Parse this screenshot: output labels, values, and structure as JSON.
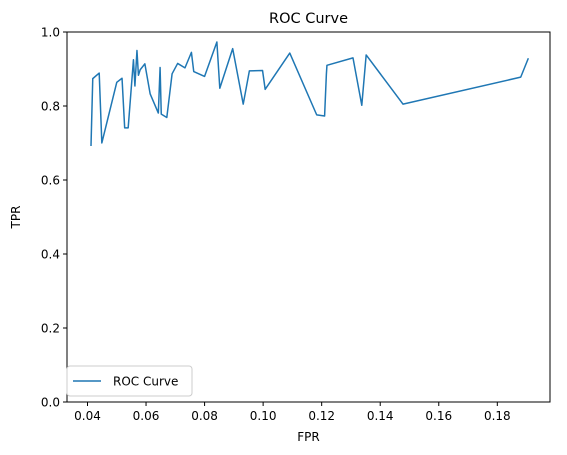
{
  "chart_data": {
    "type": "line",
    "title": "ROC Curve",
    "xlabel": "FPR",
    "ylabel": "TPR",
    "xlim": [
      0.033,
      0.198
    ],
    "ylim": [
      0.0,
      1.0
    ],
    "xticks": [
      "0.04",
      "0.06",
      "0.08",
      "0.10",
      "0.12",
      "0.14",
      "0.16",
      "0.18"
    ],
    "yticks": [
      "0.0",
      "0.2",
      "0.4",
      "0.6",
      "0.8",
      "1.0"
    ],
    "grid": false,
    "legend_position": "lower-left",
    "series": [
      {
        "name": "ROC Curve",
        "color": "#1f77b4",
        "x": [
          0.0412,
          0.0418,
          0.044,
          0.0449,
          0.05,
          0.0518,
          0.0527,
          0.0539,
          0.0557,
          0.0562,
          0.0569,
          0.0574,
          0.058,
          0.0596,
          0.0614,
          0.0642,
          0.0648,
          0.0652,
          0.0671,
          0.0689,
          0.0708,
          0.0733,
          0.0755,
          0.0763,
          0.08,
          0.0842,
          0.0852,
          0.0896,
          0.0932,
          0.0953,
          0.0998,
          0.1007,
          0.1091,
          0.1183,
          0.121,
          0.1216,
          0.1218,
          0.1307,
          0.1337,
          0.1352,
          0.1478,
          0.188,
          0.1906
        ],
        "y": [
          0.692,
          0.874,
          0.889,
          0.7,
          0.864,
          0.875,
          0.741,
          0.741,
          0.925,
          0.854,
          0.95,
          0.883,
          0.898,
          0.914,
          0.833,
          0.781,
          0.904,
          0.778,
          0.769,
          0.887,
          0.915,
          0.903,
          0.945,
          0.893,
          0.88,
          0.973,
          0.848,
          0.955,
          0.805,
          0.895,
          0.896,
          0.845,
          0.943,
          0.776,
          0.773,
          0.885,
          0.91,
          0.93,
          0.802,
          0.938,
          0.805,
          0.878,
          0.929
        ]
      }
    ]
  }
}
